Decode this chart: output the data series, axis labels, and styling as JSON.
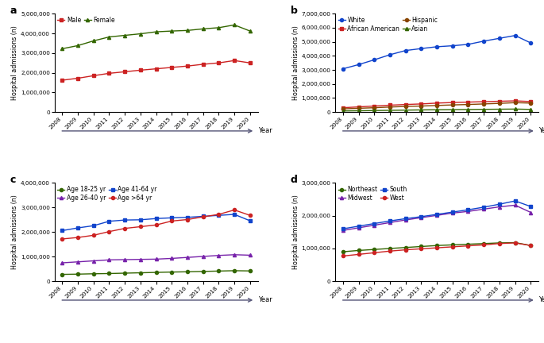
{
  "years": [
    2008,
    2009,
    2010,
    2011,
    2012,
    2013,
    2014,
    2015,
    2016,
    2017,
    2018,
    2019,
    2020
  ],
  "panel_a": {
    "Male": [
      1620000,
      1720000,
      1850000,
      1970000,
      2050000,
      2130000,
      2200000,
      2270000,
      2340000,
      2430000,
      2500000,
      2620000,
      2500000
    ],
    "Female": [
      3220000,
      3380000,
      3620000,
      3820000,
      3900000,
      3980000,
      4080000,
      4120000,
      4150000,
      4230000,
      4290000,
      4430000,
      4120000
    ]
  },
  "panel_a_colors": {
    "Male": "#cc2222",
    "Female": "#336600"
  },
  "panel_a_markers": {
    "Male": "s",
    "Female": "^"
  },
  "panel_a_ylim": [
    0,
    5000000
  ],
  "panel_a_yticks": [
    0,
    1000000,
    2000000,
    3000000,
    4000000,
    5000000
  ],
  "panel_b": {
    "White": [
      3080000,
      3380000,
      3720000,
      4080000,
      4380000,
      4520000,
      4650000,
      4720000,
      4820000,
      5050000,
      5250000,
      5450000,
      4920000
    ],
    "African American": [
      310000,
      370000,
      430000,
      490000,
      540000,
      580000,
      640000,
      680000,
      710000,
      740000,
      770000,
      800000,
      750000
    ],
    "Hispanic": [
      230000,
      270000,
      310000,
      360000,
      400000,
      430000,
      470000,
      510000,
      540000,
      580000,
      620000,
      670000,
      640000
    ],
    "Asian": [
      80000,
      95000,
      110000,
      125000,
      140000,
      155000,
      165000,
      175000,
      185000,
      195000,
      205000,
      215000,
      190000
    ]
  },
  "panel_b_colors": {
    "White": "#1144cc",
    "African American": "#cc2222",
    "Hispanic": "#884400",
    "Asian": "#336600"
  },
  "panel_b_markers": {
    "White": "o",
    "African American": "s",
    "Hispanic": "o",
    "Asian": "^"
  },
  "panel_b_ylim": [
    0,
    7000000
  ],
  "panel_b_yticks": [
    0,
    1000000,
    2000000,
    3000000,
    4000000,
    5000000,
    6000000,
    7000000
  ],
  "panel_c": {
    "Age 18-25 yr": [
      280000,
      290000,
      305000,
      315000,
      330000,
      345000,
      360000,
      375000,
      385000,
      400000,
      415000,
      430000,
      420000
    ],
    "Age 26-40 yr": [
      750000,
      790000,
      830000,
      870000,
      880000,
      890000,
      900000,
      930000,
      970000,
      1010000,
      1050000,
      1080000,
      1060000
    ],
    "Age 41-64 yr": [
      2060000,
      2170000,
      2260000,
      2440000,
      2490000,
      2500000,
      2550000,
      2580000,
      2600000,
      2640000,
      2680000,
      2720000,
      2460000
    ],
    "Age >64 yr": [
      1720000,
      1780000,
      1870000,
      2020000,
      2150000,
      2220000,
      2290000,
      2450000,
      2510000,
      2620000,
      2720000,
      2900000,
      2680000
    ]
  },
  "panel_c_colors": {
    "Age 18-25 yr": "#336600",
    "Age 26-40 yr": "#7722aa",
    "Age 41-64 yr": "#1144cc",
    "Age >64 yr": "#cc2222"
  },
  "panel_c_markers": {
    "Age 18-25 yr": "o",
    "Age 26-40 yr": "^",
    "Age 41-64 yr": "s",
    "Age >64 yr": "o"
  },
  "panel_c_ylim": [
    0,
    4000000
  ],
  "panel_c_yticks": [
    0,
    1000000,
    2000000,
    3000000,
    4000000
  ],
  "panel_d": {
    "Northeast": [
      900000,
      940000,
      970000,
      1000000,
      1030000,
      1060000,
      1090000,
      1110000,
      1130000,
      1150000,
      1170000,
      1180000,
      1090000
    ],
    "Midwest": [
      1550000,
      1630000,
      1710000,
      1790000,
      1870000,
      1940000,
      2010000,
      2080000,
      2130000,
      2200000,
      2270000,
      2320000,
      2100000
    ],
    "South": [
      1600000,
      1680000,
      1760000,
      1840000,
      1910000,
      1970000,
      2040000,
      2110000,
      2180000,
      2260000,
      2350000,
      2450000,
      2280000
    ],
    "West": [
      770000,
      820000,
      870000,
      920000,
      960000,
      990000,
      1020000,
      1050000,
      1080000,
      1110000,
      1150000,
      1170000,
      1090000
    ]
  },
  "panel_d_colors": {
    "Northeast": "#336600",
    "Midwest": "#7722aa",
    "South": "#1144cc",
    "West": "#cc2222"
  },
  "panel_d_markers": {
    "Northeast": "o",
    "Midwest": "^",
    "South": "s",
    "West": "o"
  },
  "panel_d_ylim": [
    0,
    3000000
  ],
  "panel_d_yticks": [
    0,
    1000000,
    2000000,
    3000000
  ],
  "ylabel": "Hospital admissions (n)",
  "xlabel": "Year",
  "arrow_color": "#555577"
}
